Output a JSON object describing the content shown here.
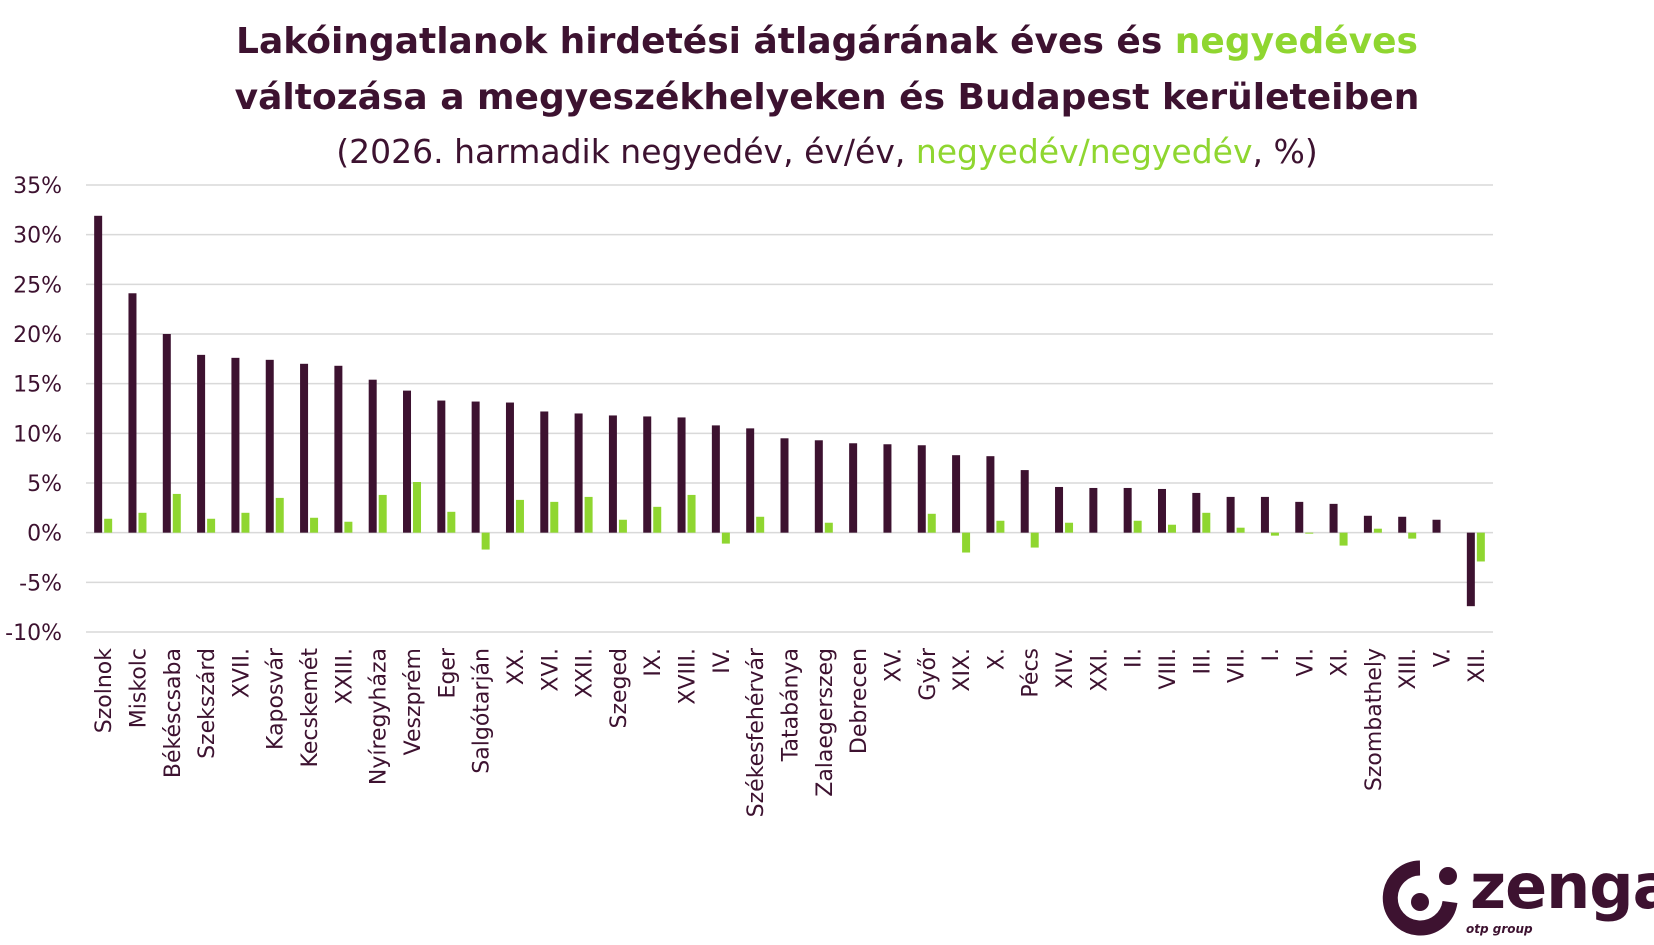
{
  "title": {
    "line1_part1": "Lakóingatlanok hirdetési átlagárának éves és ",
    "line1_part2": "negyedéves",
    "line2": "változása a megyeszékhelyeken és Budapest kerületeiben",
    "subtitle_part1": "(2026. harmadik negyedév, év/év, ",
    "subtitle_part2": "negyedév/negyedév",
    "subtitle_part3": ", %)"
  },
  "logo": {
    "text": "zenga",
    "sub": "otp group"
  },
  "colors": {
    "annual": "#3d1230",
    "quarterly": "#8fd630",
    "grid": "#d9d9d9",
    "text": "#3d1230"
  },
  "chart_data": {
    "type": "bar",
    "ylim": [
      -10,
      35
    ],
    "yticks": [
      -10,
      -5,
      0,
      5,
      10,
      15,
      20,
      25,
      30,
      35
    ],
    "ytick_labels": [
      "-10%",
      "-5%",
      "0%",
      "5%",
      "10%",
      "15%",
      "20%",
      "25%",
      "30%",
      "35%"
    ],
    "grid": true,
    "categories": [
      "Szolnok",
      "Miskolc",
      "Békéscsaba",
      "Szekszárd",
      "XVII.",
      "Kaposvár",
      "Kecskemét",
      "XXIII.",
      "Nyíregyháza",
      "Veszprém",
      "Eger",
      "Salgótarján",
      "XX.",
      "XVI.",
      "XXII.",
      "Szeged",
      "IX.",
      "XVIII.",
      "IV.",
      "Székesfehérvár",
      "Tatabánya",
      "Zalaegerszeg",
      "Debrecen",
      "XV.",
      "Győr",
      "XIX.",
      "X.",
      "Pécs",
      "XIV.",
      "XXI.",
      "II.",
      "VIII.",
      "III.",
      "VII.",
      "I.",
      "VI.",
      "XI.",
      "Szombathely",
      "XIII.",
      "V.",
      "XII."
    ],
    "series": [
      {
        "key": "annual",
        "values": [
          31.9,
          24.1,
          20.0,
          17.9,
          17.6,
          17.4,
          17.0,
          16.8,
          15.4,
          14.3,
          13.3,
          13.2,
          13.1,
          12.2,
          12.0,
          11.8,
          11.7,
          11.6,
          10.8,
          10.5,
          9.5,
          9.3,
          9.0,
          8.9,
          8.8,
          7.8,
          7.7,
          6.3,
          4.6,
          4.5,
          4.5,
          4.4,
          4.0,
          3.6,
          3.6,
          3.1,
          2.9,
          1.7,
          1.6,
          1.3,
          -7.4
        ]
      },
      {
        "key": "quarterly",
        "values": [
          1.4,
          2.0,
          3.9,
          1.4,
          2.0,
          3.5,
          1.5,
          1.1,
          3.8,
          5.1,
          2.1,
          -1.7,
          3.3,
          3.1,
          3.6,
          1.3,
          2.6,
          3.8,
          -1.1,
          1.6,
          0,
          1.0,
          0,
          0,
          1.9,
          -2.0,
          1.2,
          -1.5,
          1.0,
          0,
          1.2,
          0.8,
          2.0,
          0.5,
          -0.3,
          -0.1,
          -1.3,
          0.4,
          -0.6,
          0,
          -2.9
        ]
      }
    ]
  }
}
